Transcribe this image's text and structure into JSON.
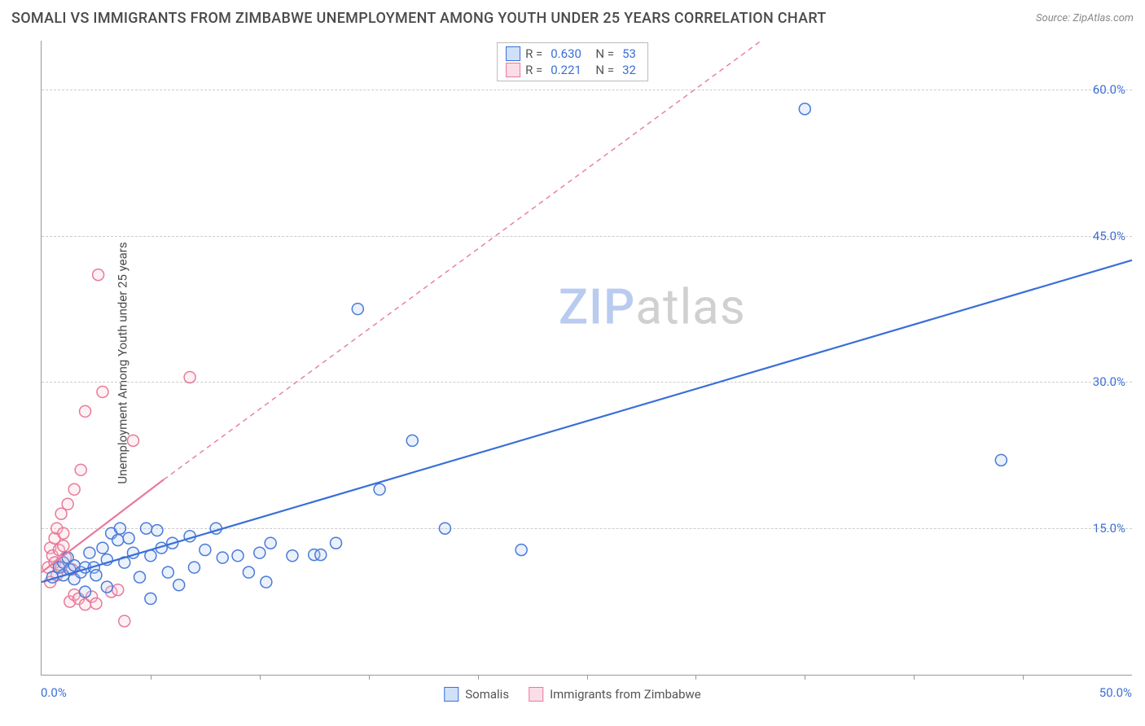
{
  "title": "SOMALI VS IMMIGRANTS FROM ZIMBABWE UNEMPLOYMENT AMONG YOUTH UNDER 25 YEARS CORRELATION CHART",
  "source": "Source: ZipAtlas.com",
  "ylabel": "Unemployment Among Youth under 25 years",
  "watermark_a": "ZIP",
  "watermark_b": "atlas",
  "chart": {
    "type": "scatter",
    "xlim": [
      0,
      50
    ],
    "ylim": [
      0,
      65
    ],
    "x_tick_start": "0.0%",
    "x_tick_end": "50.0%",
    "x_minor_ticks": [
      5,
      10,
      15,
      20,
      25,
      30,
      35,
      40,
      45
    ],
    "y_gridlines": [
      {
        "value": 15,
        "label": "15.0%"
      },
      {
        "value": 30,
        "label": "30.0%"
      },
      {
        "value": 45,
        "label": "45.0%"
      },
      {
        "value": 60,
        "label": "60.0%"
      }
    ],
    "background_color": "#ffffff",
    "grid_color": "#d8d8d8",
    "axis_color": "#999999",
    "tick_label_color": "#3b6fd6",
    "marker_radius": 7,
    "marker_stroke_width": 1.5,
    "marker_fill_opacity": 0.25,
    "series": [
      {
        "name": "Somalis",
        "stroke": "#3a6fd8",
        "fill": "#aac6f0",
        "marker_stroke": "#4a7ad8",
        "R": "0.630",
        "N": "53",
        "trend": {
          "x1": 0,
          "y1": 9.5,
          "x2": 50,
          "y2": 42.5,
          "dash": "0",
          "width": 2.2
        },
        "points": [
          [
            0.5,
            10
          ],
          [
            0.8,
            11
          ],
          [
            1,
            11.5
          ],
          [
            1,
            10.2
          ],
          [
            1.2,
            12
          ],
          [
            1.3,
            10.8
          ],
          [
            1.5,
            11.2
          ],
          [
            1.5,
            9.8
          ],
          [
            1.8,
            10.5
          ],
          [
            2,
            11
          ],
          [
            2,
            8.5
          ],
          [
            2.2,
            12.5
          ],
          [
            2.4,
            11
          ],
          [
            2.5,
            10.2
          ],
          [
            2.8,
            13
          ],
          [
            3,
            11.8
          ],
          [
            3,
            9
          ],
          [
            3.2,
            14.5
          ],
          [
            3.5,
            13.8
          ],
          [
            3.6,
            15
          ],
          [
            3.8,
            11.5
          ],
          [
            4,
            14
          ],
          [
            4.2,
            12.5
          ],
          [
            4.5,
            10
          ],
          [
            4.8,
            15
          ],
          [
            5,
            7.8
          ],
          [
            5,
            12.2
          ],
          [
            5.3,
            14.8
          ],
          [
            5.5,
            13
          ],
          [
            5.8,
            10.5
          ],
          [
            6,
            13.5
          ],
          [
            6.3,
            9.2
          ],
          [
            6.8,
            14.2
          ],
          [
            7,
            11
          ],
          [
            7.5,
            12.8
          ],
          [
            8,
            15
          ],
          [
            8.3,
            12
          ],
          [
            9,
            12.2
          ],
          [
            9.5,
            10.5
          ],
          [
            10,
            12.5
          ],
          [
            10.5,
            13.5
          ],
          [
            10.3,
            9.5
          ],
          [
            11.5,
            12.2
          ],
          [
            12.5,
            12.3
          ],
          [
            12.8,
            12.3
          ],
          [
            13.5,
            13.5
          ],
          [
            14.5,
            37.5
          ],
          [
            15.5,
            19
          ],
          [
            17,
            24
          ],
          [
            18.5,
            15
          ],
          [
            22,
            12.8
          ],
          [
            35,
            58
          ],
          [
            44,
            22
          ]
        ]
      },
      {
        "name": "Immigrants from Zimbabwe",
        "stroke": "#e87a9a",
        "fill": "#f7c6d4",
        "marker_stroke": "#e87a9a",
        "R": "0.221",
        "N": "32",
        "trend_solid": {
          "x1": 0,
          "y1": 10.5,
          "x2": 5.6,
          "y2": 20,
          "dash": "0",
          "width": 2.2
        },
        "trend_dash": {
          "x1": 5.6,
          "y1": 20,
          "x2": 33,
          "y2": 65,
          "dash": "6,5",
          "width": 1.4
        },
        "points": [
          [
            0.3,
            11
          ],
          [
            0.4,
            13
          ],
          [
            0.4,
            9.5
          ],
          [
            0.5,
            12.2
          ],
          [
            0.6,
            14
          ],
          [
            0.6,
            11.5
          ],
          [
            0.7,
            10.2
          ],
          [
            0.7,
            15
          ],
          [
            0.8,
            12.8
          ],
          [
            0.9,
            16.5
          ],
          [
            0.9,
            11
          ],
          [
            1,
            14.5
          ],
          [
            1,
            13.2
          ],
          [
            1.1,
            12
          ],
          [
            1.2,
            17.5
          ],
          [
            1.3,
            7.5
          ],
          [
            1.4,
            10.8
          ],
          [
            1.5,
            8.2
          ],
          [
            1.5,
            19
          ],
          [
            1.7,
            7.8
          ],
          [
            1.8,
            21
          ],
          [
            2,
            7.2
          ],
          [
            2,
            27
          ],
          [
            2.3,
            8
          ],
          [
            2.5,
            7.3
          ],
          [
            2.6,
            41
          ],
          [
            2.8,
            29
          ],
          [
            3.2,
            8.5
          ],
          [
            3.5,
            8.7
          ],
          [
            3.8,
            5.5
          ],
          [
            4.2,
            24
          ],
          [
            6.8,
            30.5
          ]
        ]
      }
    ],
    "legend_swatch_border": {
      "somalis": "#3a6fd8",
      "zimbabwe": "#e87a9a"
    },
    "legend_swatch_fill": {
      "somalis": "#cfe0f9",
      "zimbabwe": "#fadde6"
    }
  }
}
